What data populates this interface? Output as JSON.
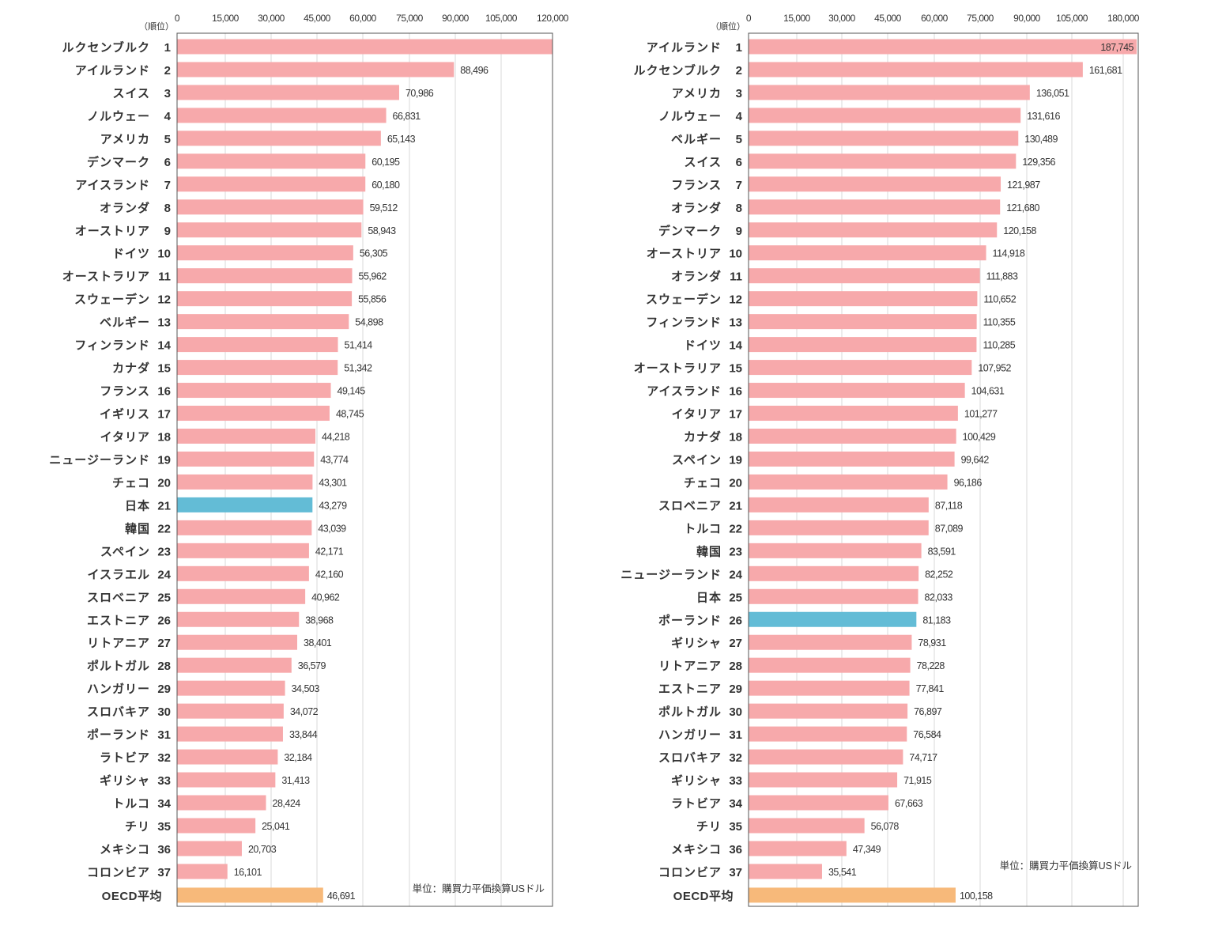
{
  "chart_data": [
    {
      "type": "bar",
      "orientation": "horizontal",
      "rank_header": "（順位）",
      "xlim": [
        0,
        120000
      ],
      "xticks": [
        "0",
        "15,000",
        "30,000",
        "45,000",
        "60,000",
        "75,000",
        "90,000",
        "105,000",
        "120,000"
      ],
      "grid": true,
      "unit_note": "単位：購買力平価換算USドル",
      "colors": {
        "bar": "#f7a9ab",
        "highlight": "#63bcd6",
        "average": "#f7b97a"
      },
      "highlight_index": 20,
      "rows": [
        {
          "rank": "1",
          "name": "ルクセンブルク",
          "value": 120000,
          "value_label": ""
        },
        {
          "rank": "2",
          "name": "アイルランド",
          "value": 88496,
          "value_label": "88,496"
        },
        {
          "rank": "3",
          "name": "スイス",
          "value": 70986,
          "value_label": "70,986"
        },
        {
          "rank": "4",
          "name": "ノルウェー",
          "value": 66831,
          "value_label": "66,831"
        },
        {
          "rank": "5",
          "name": "アメリカ",
          "value": 65143,
          "value_label": "65,143"
        },
        {
          "rank": "6",
          "name": "デンマーク",
          "value": 60195,
          "value_label": "60,195"
        },
        {
          "rank": "7",
          "name": "アイスランド",
          "value": 60180,
          "value_label": "60,180"
        },
        {
          "rank": "8",
          "name": "オランダ",
          "value": 59512,
          "value_label": "59,512"
        },
        {
          "rank": "9",
          "name": "オーストリア",
          "value": 58943,
          "value_label": "58,943"
        },
        {
          "rank": "10",
          "name": "ドイツ",
          "value": 56305,
          "value_label": "56,305"
        },
        {
          "rank": "11",
          "name": "オーストラリア",
          "value": 55962,
          "value_label": "55,962"
        },
        {
          "rank": "12",
          "name": "スウェーデン",
          "value": 55856,
          "value_label": "55,856"
        },
        {
          "rank": "13",
          "name": "ベルギー",
          "value": 54898,
          "value_label": "54,898"
        },
        {
          "rank": "14",
          "name": "フィンランド",
          "value": 51414,
          "value_label": "51,414"
        },
        {
          "rank": "15",
          "name": "カナダ",
          "value": 51342,
          "value_label": "51,342"
        },
        {
          "rank": "16",
          "name": "フランス",
          "value": 49145,
          "value_label": "49,145"
        },
        {
          "rank": "17",
          "name": "イギリス",
          "value": 48745,
          "value_label": "48,745"
        },
        {
          "rank": "18",
          "name": "イタリア",
          "value": 44218,
          "value_label": "44,218"
        },
        {
          "rank": "19",
          "name": "ニュージーランド",
          "value": 43774,
          "value_label": "43,774"
        },
        {
          "rank": "20",
          "name": "チェコ",
          "value": 43301,
          "value_label": "43,301"
        },
        {
          "rank": "21",
          "name": "日本",
          "value": 43279,
          "value_label": "43,279"
        },
        {
          "rank": "22",
          "name": "韓国",
          "value": 43039,
          "value_label": "43,039"
        },
        {
          "rank": "23",
          "name": "スペイン",
          "value": 42171,
          "value_label": "42,171"
        },
        {
          "rank": "24",
          "name": "イスラエル",
          "value": 42160,
          "value_label": "42,160"
        },
        {
          "rank": "25",
          "name": "スロベニア",
          "value": 40962,
          "value_label": "40,962"
        },
        {
          "rank": "26",
          "name": "エストニア",
          "value": 38968,
          "value_label": "38,968"
        },
        {
          "rank": "27",
          "name": "リトアニア",
          "value": 38401,
          "value_label": "38,401"
        },
        {
          "rank": "28",
          "name": "ポルトガル",
          "value": 36579,
          "value_label": "36,579"
        },
        {
          "rank": "29",
          "name": "ハンガリー",
          "value": 34503,
          "value_label": "34,503"
        },
        {
          "rank": "30",
          "name": "スロバキア",
          "value": 34072,
          "value_label": "34,072"
        },
        {
          "rank": "31",
          "name": "ポーランド",
          "value": 33844,
          "value_label": "33,844"
        },
        {
          "rank": "32",
          "name": "ラトビア",
          "value": 32184,
          "value_label": "32,184"
        },
        {
          "rank": "33",
          "name": "ギリシャ",
          "value": 31413,
          "value_label": "31,413"
        },
        {
          "rank": "34",
          "name": "トルコ",
          "value": 28424,
          "value_label": "28,424"
        },
        {
          "rank": "35",
          "name": "チリ",
          "value": 25041,
          "value_label": "25,041"
        },
        {
          "rank": "36",
          "name": "メキシコ",
          "value": 20703,
          "value_label": "20,703"
        },
        {
          "rank": "37",
          "name": "コロンビア",
          "value": 16101,
          "value_label": "16,101"
        }
      ],
      "average": {
        "name": "OECD平均",
        "value": 46691,
        "value_label": "46,691"
      }
    },
    {
      "type": "bar",
      "orientation": "horizontal",
      "rank_header": "（順位）",
      "xlim": [
        0,
        190000
      ],
      "xticks": [
        "0",
        "15,000",
        "30,000",
        "45,000",
        "60,000",
        "75,000",
        "90,000",
        "105,000",
        "180,000"
      ],
      "grid": true,
      "unit_note": "単位：購買力平価換算USドル",
      "colors": {
        "bar": "#f7a9ab",
        "highlight": "#63bcd6",
        "average": "#f7b97a"
      },
      "highlight_index": 25,
      "rows": [
        {
          "rank": "1",
          "name": "アイルランド",
          "value": 187745,
          "value_label": "187,745"
        },
        {
          "rank": "2",
          "name": "ルクセンブルク",
          "value": 161681,
          "value_label": "161,681"
        },
        {
          "rank": "3",
          "name": "アメリカ",
          "value": 136051,
          "value_label": "136,051"
        },
        {
          "rank": "4",
          "name": "ノルウェー",
          "value": 131616,
          "value_label": "131,616"
        },
        {
          "rank": "5",
          "name": "ベルギー",
          "value": 130489,
          "value_label": "130,489"
        },
        {
          "rank": "6",
          "name": "スイス",
          "value": 129356,
          "value_label": "129,356"
        },
        {
          "rank": "7",
          "name": "フランス",
          "value": 121987,
          "value_label": "121,987"
        },
        {
          "rank": "8",
          "name": "オランダ",
          "value": 121680,
          "value_label": "121,680"
        },
        {
          "rank": "9",
          "name": "デンマーク",
          "value": 120158,
          "value_label": "120,158"
        },
        {
          "rank": "10",
          "name": "オーストリア",
          "value": 114918,
          "value_label": "114,918"
        },
        {
          "rank": "11",
          "name": "オランダ",
          "value": 111883,
          "value_label": "111,883"
        },
        {
          "rank": "12",
          "name": "スウェーデン",
          "value": 110652,
          "value_label": "110,652"
        },
        {
          "rank": "13",
          "name": "フィンランド",
          "value": 110355,
          "value_label": "110,355"
        },
        {
          "rank": "14",
          "name": "ドイツ",
          "value": 110285,
          "value_label": "110,285"
        },
        {
          "rank": "15",
          "name": "オーストラリア",
          "value": 107952,
          "value_label": "107,952"
        },
        {
          "rank": "16",
          "name": "アイスランド",
          "value": 104631,
          "value_label": "104,631"
        },
        {
          "rank": "17",
          "name": "イタリア",
          "value": 101277,
          "value_label": "101,277"
        },
        {
          "rank": "18",
          "name": "カナダ",
          "value": 100429,
          "value_label": "100,429"
        },
        {
          "rank": "19",
          "name": "スペイン",
          "value": 99642,
          "value_label": "99,642"
        },
        {
          "rank": "20",
          "name": "チェコ",
          "value": 96186,
          "value_label": "96,186"
        },
        {
          "rank": "21",
          "name": "スロベニア",
          "value": 87118,
          "value_label": "87,118"
        },
        {
          "rank": "22",
          "name": "トルコ",
          "value": 87089,
          "value_label": "87,089"
        },
        {
          "rank": "23",
          "name": "韓国",
          "value": 83591,
          "value_label": "83,591"
        },
        {
          "rank": "24",
          "name": "ニュージーランド",
          "value": 82252,
          "value_label": "82,252"
        },
        {
          "rank": "25",
          "name": "日本",
          "value": 82033,
          "value_label": "82,033"
        },
        {
          "rank": "26",
          "name": "ポーランド",
          "value": 81183,
          "value_label": "81,183"
        },
        {
          "rank": "27",
          "name": "ギリシャ",
          "value": 78931,
          "value_label": "78,931"
        },
        {
          "rank": "28",
          "name": "リトアニア",
          "value": 78228,
          "value_label": "78,228"
        },
        {
          "rank": "29",
          "name": "エストニア",
          "value": 77841,
          "value_label": "77,841"
        },
        {
          "rank": "30",
          "name": "ポルトガル",
          "value": 76897,
          "value_label": "76,897"
        },
        {
          "rank": "31",
          "name": "ハンガリー",
          "value": 76584,
          "value_label": "76,584"
        },
        {
          "rank": "32",
          "name": "スロバキア",
          "value": 74717,
          "value_label": "74,717"
        },
        {
          "rank": "33",
          "name": "ギリシャ",
          "value": 71915,
          "value_label": "71,915"
        },
        {
          "rank": "34",
          "name": "ラトビア",
          "value": 67663,
          "value_label": "67,663"
        },
        {
          "rank": "35",
          "name": "チリ",
          "value": 56078,
          "value_label": "56,078"
        },
        {
          "rank": "36",
          "name": "メキシコ",
          "value": 47349,
          "value_label": "47,349"
        },
        {
          "rank": "37",
          "name": "コロンビア",
          "value": 35541,
          "value_label": "35,541"
        }
      ],
      "average": {
        "name": "OECD平均",
        "value": 100158,
        "value_label": "100,158"
      }
    }
  ]
}
